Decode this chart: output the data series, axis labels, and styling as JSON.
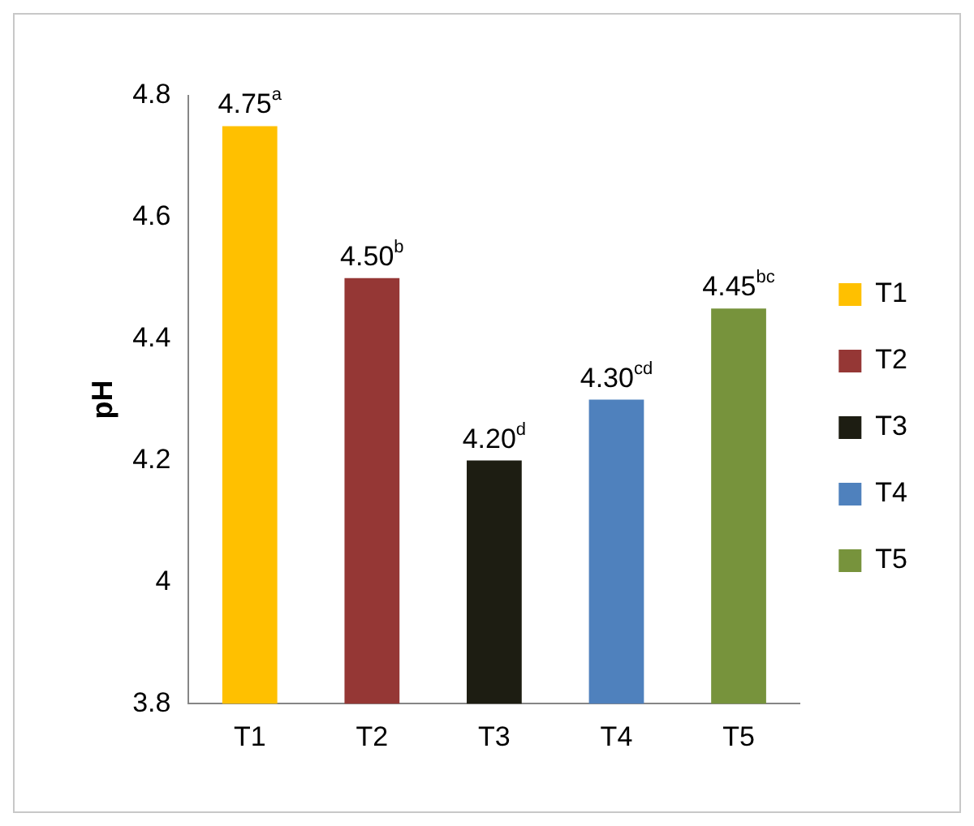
{
  "chart_data": {
    "type": "bar",
    "ylabel": "pH",
    "categories": [
      "T1",
      "T2",
      "T3",
      "T4",
      "T5"
    ],
    "series": [
      {
        "name": "T1",
        "color": "#ffc000",
        "values": [
          4.75,
          null,
          null,
          null,
          null
        ],
        "value_labels": [
          "4.75$^{a}$",
          null,
          null,
          null,
          null
        ]
      },
      {
        "name": "T2",
        "color": "#953735",
        "values": [
          null,
          4.5,
          null,
          null,
          null
        ],
        "value_labels": [
          null,
          "4.50$^{b}$",
          null,
          null,
          null
        ]
      },
      {
        "name": "T3",
        "color": "#1d1d12",
        "values": [
          null,
          null,
          4.2,
          null,
          null
        ],
        "value_labels": [
          null,
          null,
          "4.20$^{d}$",
          null,
          null
        ]
      },
      {
        "name": "T4",
        "color": "#4f81bd",
        "values": [
          null,
          null,
          null,
          4.3,
          null
        ],
        "value_labels": [
          null,
          null,
          null,
          "4.30$^{cd}$",
          null
        ]
      },
      {
        "name": "T5",
        "color": "#77933c",
        "values": [
          null,
          null,
          null,
          null,
          4.45
        ],
        "value_labels": [
          null,
          null,
          null,
          null,
          "4.45$^{bc}$"
        ]
      }
    ],
    "ylim": [
      3.8,
      4.8
    ],
    "yticks": [
      3.8,
      4,
      4.2,
      4.4,
      4.6,
      4.8
    ],
    "grid": false,
    "legend": "right"
  }
}
